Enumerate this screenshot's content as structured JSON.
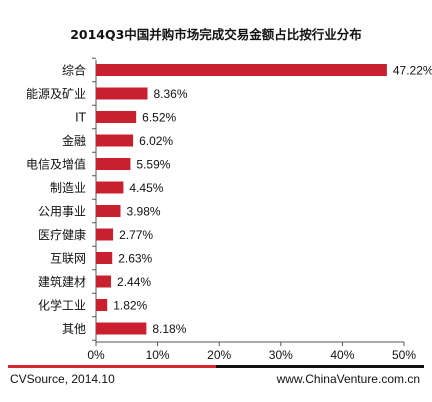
{
  "chart_data": {
    "type": "bar",
    "orientation": "horizontal",
    "title": "2014Q3中国并购市场完成交易金额占比按行业分布",
    "categories": [
      "综合",
      "能源及矿业",
      "IT",
      "金融",
      "电信及增值",
      "制造业",
      "公用事业",
      "医疗健康",
      "互联网",
      "建筑建材",
      "化学工业",
      "其他"
    ],
    "values": [
      47.22,
      8.36,
      6.52,
      6.02,
      5.59,
      4.45,
      3.98,
      2.77,
      2.63,
      2.44,
      1.82,
      8.18
    ],
    "value_labels": [
      "47.22%",
      "8.36%",
      "6.52%",
      "6.02%",
      "5.59%",
      "4.45%",
      "3.98%",
      "2.77%",
      "2.63%",
      "2.44%",
      "1.82%",
      "8.18%"
    ],
    "xlim": [
      0,
      50
    ],
    "x_ticks": [
      0,
      10,
      20,
      30,
      40,
      50
    ],
    "x_tick_labels": [
      "0%",
      "10%",
      "20%",
      "30%",
      "40%",
      "50%"
    ],
    "grid": false,
    "colors": {
      "bar": "#c8202f",
      "footer_rule_left": "#d9262c",
      "footer_rule_right": "#111111"
    }
  },
  "footer": {
    "source": "CVSource, 2014.10",
    "website": "www.ChinaVenture.com.cn"
  }
}
